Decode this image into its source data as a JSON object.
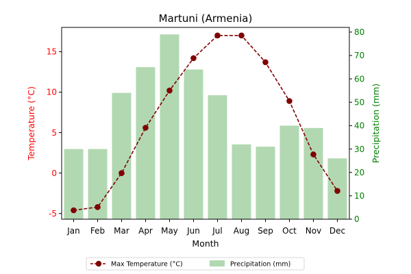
{
  "chart_data": {
    "type": "bar+line",
    "title": "Martuni (Armenia)",
    "xlabel": "Month",
    "ylabel_left": "Temperature (°C)",
    "ylabel_right": "Precipitation (mm)",
    "categories": [
      "Jan",
      "Feb",
      "Mar",
      "Apr",
      "May",
      "Jun",
      "Jul",
      "Aug",
      "Sep",
      "Oct",
      "Nov",
      "Dec"
    ],
    "ylim_left": [
      -5.7,
      18.0
    ],
    "ylim_right": [
      0,
      82
    ],
    "yticks_left": [
      -5,
      0,
      5,
      10,
      15
    ],
    "yticks_right": [
      0,
      10,
      20,
      30,
      40,
      50,
      60,
      70,
      80
    ],
    "grid": false,
    "legend_position": "bottom-center",
    "series": [
      {
        "name": "Max Temperature (°C)",
        "type": "line",
        "axis": "left",
        "style": "dashed",
        "marker": "circle",
        "color": "#800000",
        "values": [
          -4.6,
          -4.2,
          0.0,
          5.6,
          10.2,
          14.2,
          17.0,
          17.0,
          13.7,
          8.9,
          2.3,
          -2.2
        ]
      },
      {
        "name": "Precipitation (mm)",
        "type": "bar",
        "axis": "right",
        "color": "#b2d8b2",
        "values": [
          30,
          30,
          54,
          65,
          79,
          64,
          53,
          32,
          31,
          40,
          39,
          26
        ]
      }
    ],
    "colors": {
      "left_axis": "#ff0000",
      "right_axis": "#008000",
      "line": "#800000",
      "bar": "#b2d8b2"
    }
  }
}
